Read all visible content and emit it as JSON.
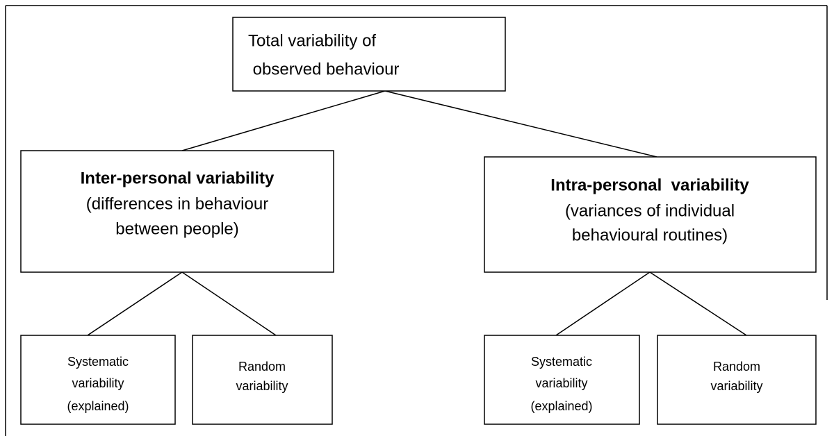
{
  "nodes": [
    {
      "lines": [
        "Total variability of",
        " observed behaviour"
      ]
    },
    {
      "title": "Inter-personal variability",
      "lines": [
        "(differences in behaviour",
        "between people)"
      ]
    },
    {
      "title": "Intra-personal  variability",
      "lines": [
        "(variances of individual",
        "behavioural routines)"
      ]
    },
    {
      "lines": [
        "Systematic",
        "variability",
        "(explained)"
      ]
    },
    {
      "lines": [
        "Random",
        "variability"
      ]
    },
    {
      "lines": [
        "Systematic",
        "variability",
        "(explained)"
      ]
    },
    {
      "lines": [
        "Random",
        "variability"
      ]
    }
  ]
}
